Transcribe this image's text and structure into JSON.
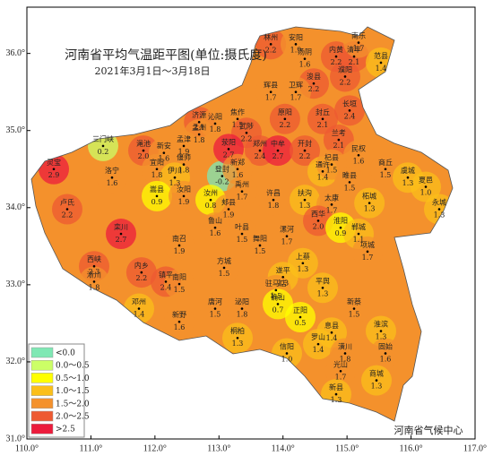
{
  "chart_data": {
    "type": "map",
    "title": "河南省平均气温距平图(单位:摄氏度)",
    "subtitle": "2021年3月1日～3月18日",
    "source": "河南省气候中心",
    "xlim": [
      110,
      117
    ],
    "ylim": [
      31,
      36.6
    ],
    "xticks": [
      {
        "value": 110,
        "label": "110.0°"
      },
      {
        "value": 111,
        "label": "111.0°"
      },
      {
        "value": 112,
        "label": "112.0°"
      },
      {
        "value": 113,
        "label": "113.0°"
      },
      {
        "value": 114,
        "label": "114.0°"
      },
      {
        "value": 115,
        "label": "115.0°"
      },
      {
        "value": 116,
        "label": "116.0°"
      },
      {
        "value": 117,
        "label": "117.0°"
      }
    ],
    "yticks": [
      {
        "value": 31,
        "label": "31.0°"
      },
      {
        "value": 32,
        "label": "32.0°"
      },
      {
        "value": 33,
        "label": "33.0°"
      },
      {
        "value": 34,
        "label": "34.0°"
      },
      {
        "value": 35,
        "label": "35.0°"
      },
      {
        "value": 36,
        "label": "36.0°"
      }
    ],
    "legend": {
      "labels": [
        "<0.0",
        "0.0～0.5",
        "0.5～1.0",
        "1.0～1.5",
        "1.5～2.0",
        "2.0～2.5",
        ">2.5"
      ],
      "colors": [
        "#7fe8b4",
        "#ccff66",
        "#ffff00",
        "#fbbf1a",
        "#f4912c",
        "#ee5a32",
        "#ec1c3c"
      ],
      "breaks": [
        0,
        0.5,
        1.0,
        1.5,
        2.0,
        2.5
      ]
    },
    "stations": {
      "names": [
        "林州",
        "安阳",
        "汤阴",
        "内黄",
        "清丰",
        "南乐",
        "范县",
        "濮阳",
        "浚县",
        "辉县",
        "卫辉",
        "长垣",
        "济源",
        "沁阳",
        "孟州",
        "焦作",
        "武陟",
        "原阳",
        "封丘",
        "三门峡",
        "渑池",
        "新安",
        "孟津",
        "偃师",
        "登封",
        "荥阳",
        "郑州",
        "中牟",
        "开封",
        "兰考",
        "民权",
        "商丘",
        "虞城",
        "夏邑",
        "永城",
        "灵宝",
        "卢氏",
        "洛宁",
        "宜阳",
        "伊川",
        "嵩县",
        "汝阳",
        "栾川",
        "汝州",
        "新郑",
        "禹州",
        "许昌",
        "通许",
        "杞县",
        "睢县",
        "柘城",
        "扶沟",
        "太康",
        "西华",
        "淮阳",
        "郸城",
        "项城",
        "郏县",
        "鲁山",
        "叶县",
        "舞阳",
        "漯河",
        "西峡",
        "淅川",
        "内乡",
        "镇平",
        "南召",
        "方城",
        "南阳",
        "邓州",
        "新野",
        "唐河",
        "泌阳",
        "遂平",
        "上蔡",
        "驻马店",
        "确山",
        "平舆",
        "正阳",
        "新蔡",
        "桐柏",
        "信阳",
        "罗山",
        "息县",
        "潢川",
        "淮滨",
        "固始",
        "光山",
        "商城",
        "新县"
      ],
      "lon": [
        113.81,
        114.2,
        114.34,
        114.83,
        115.11,
        115.18,
        115.53,
        114.97,
        114.48,
        113.81,
        114.2,
        115.04,
        112.69,
        112.94,
        112.69,
        113.29,
        113.43,
        114.03,
        114.62,
        111.19,
        111.82,
        112.14,
        112.45,
        112.45,
        113.05,
        113.15,
        113.64,
        113.92,
        114.34,
        114.87,
        115.18,
        115.6,
        115.95,
        116.23,
        116.44,
        110.42,
        110.63,
        111.33,
        112.03,
        112.31,
        112.03,
        112.45,
        111.47,
        112.87,
        113.29,
        113.36,
        113.85,
        114.62,
        114.76,
        115.04,
        115.35,
        114.34,
        114.76,
        114.55,
        114.9,
        115.18,
        115.32,
        113.15,
        112.94,
        113.36,
        113.64,
        114.06,
        111.05,
        111.05,
        111.79,
        112.17,
        112.38,
        113.08,
        112.38,
        111.75,
        112.38,
        112.94,
        113.36,
        114.0,
        114.31,
        113.89,
        113.92,
        114.62,
        114.27,
        115.11,
        113.29,
        114.06,
        114.55,
        114.76,
        114.97,
        115.53,
        115.6,
        114.9,
        115.46,
        114.83
      ],
      "lat": [
        36.12,
        36.12,
        35.93,
        35.96,
        35.96,
        36.14,
        35.88,
        35.7,
        35.61,
        35.5,
        35.5,
        35.26,
        35.11,
        35.09,
        34.95,
        35.15,
        34.97,
        35.15,
        35.15,
        34.8,
        34.74,
        34.71,
        34.8,
        34.56,
        34.41,
        34.76,
        34.74,
        34.74,
        34.74,
        34.88,
        34.68,
        34.5,
        34.39,
        34.27,
        33.98,
        34.5,
        33.98,
        34.39,
        34.5,
        34.39,
        34.15,
        34.15,
        33.66,
        34.1,
        34.5,
        34.21,
        34.1,
        34.47,
        34.56,
        34.33,
        34.06,
        34.1,
        34.04,
        33.83,
        33.74,
        33.66,
        33.43,
        33.98,
        33.74,
        33.66,
        33.51,
        33.63,
        33.24,
        33.04,
        33.16,
        33.04,
        33.51,
        33.22,
        33.01,
        32.69,
        32.52,
        32.69,
        32.69,
        33.1,
        33.28,
        32.93,
        32.75,
        32.96,
        32.58,
        32.69,
        32.31,
        32.11,
        32.23,
        32.38,
        32.11,
        32.4,
        32.11,
        31.88,
        31.76,
        31.58
      ],
      "values": [
        2.2,
        1.9,
        1.6,
        2.2,
        2.1,
        1.7,
        1.4,
        2.2,
        2.2,
        1.7,
        1.7,
        2.4,
        2.1,
        1.8,
        1.8,
        1.5,
        2.2,
        2.2,
        2.1,
        0.2,
        2.0,
        1.6,
        1.9,
        1.8,
        -0.2,
        2.7,
        2.4,
        2.7,
        2.2,
        2.1,
        1.6,
        1.5,
        1.3,
        1.0,
        1.3,
        2.9,
        2.2,
        1.6,
        1.8,
        1.3,
        0.9,
        1.9,
        2.7,
        0.8,
        1.6,
        1.7,
        1.8,
        1.4,
        1.5,
        1.5,
        1.3,
        1.3,
        1.7,
        2.0,
        0.9,
        1.1,
        1.7,
        1.9,
        1.6,
        1.5,
        1.5,
        1.7,
        2.3,
        1.8,
        2.2,
        2.4,
        1.9,
        1.5,
        1.5,
        1.4,
        1.6,
        1.5,
        1.8,
        1.3,
        1.3,
        1.5,
        0.7,
        1.3,
        0.5,
        1.5,
        1.3,
        1.0,
        1.4,
        1.4,
        1.8,
        1.3,
        1.6,
        1.7,
        1.3,
        1.3
      ],
      "value_labels": [
        "2.2",
        "1.9",
        "1.6",
        "2.2",
        "2.1",
        "1.7",
        "1.4",
        "2.2",
        "2.2",
        "1.7",
        "1.7",
        "2.4",
        "2.1",
        "1.8",
        "1.8",
        "1.5",
        "2.2",
        "2.2",
        "2.1",
        "0.2",
        "2.0",
        "1.6",
        "1.9",
        "1.8",
        "-0.2",
        "2.7",
        "2.4",
        "2.7",
        "2.2",
        "2.1",
        "1.6",
        "1.5",
        "1.3",
        "1.0",
        "1.3",
        "2.9",
        "2.2",
        "1.6",
        "1.8",
        "1.3",
        "0.9",
        "1.9",
        "2.7",
        "0.8",
        "1.6",
        "1.7",
        "1.8",
        "1.4",
        "1.5",
        "1.5",
        "1.3",
        "1.3",
        "1.7",
        "2.0",
        "0.9",
        "1.1",
        "1.7",
        "1.9",
        "1.6",
        "1.5",
        "1.5",
        "1.7",
        "2.3",
        "1.8",
        "2.2",
        "2.4",
        "1.9",
        "1.5",
        "1.5",
        "1.4",
        "1.6",
        "1.5",
        "1.8",
        "1.3",
        "1.3",
        "1.5",
        "0.7",
        "1.3",
        "0.5",
        "1.5",
        "1.3",
        "1.0",
        "1.4",
        "1.4",
        "1.8",
        "1.3",
        "1.6",
        "1.7",
        "1.3",
        "1.3"
      ]
    }
  }
}
